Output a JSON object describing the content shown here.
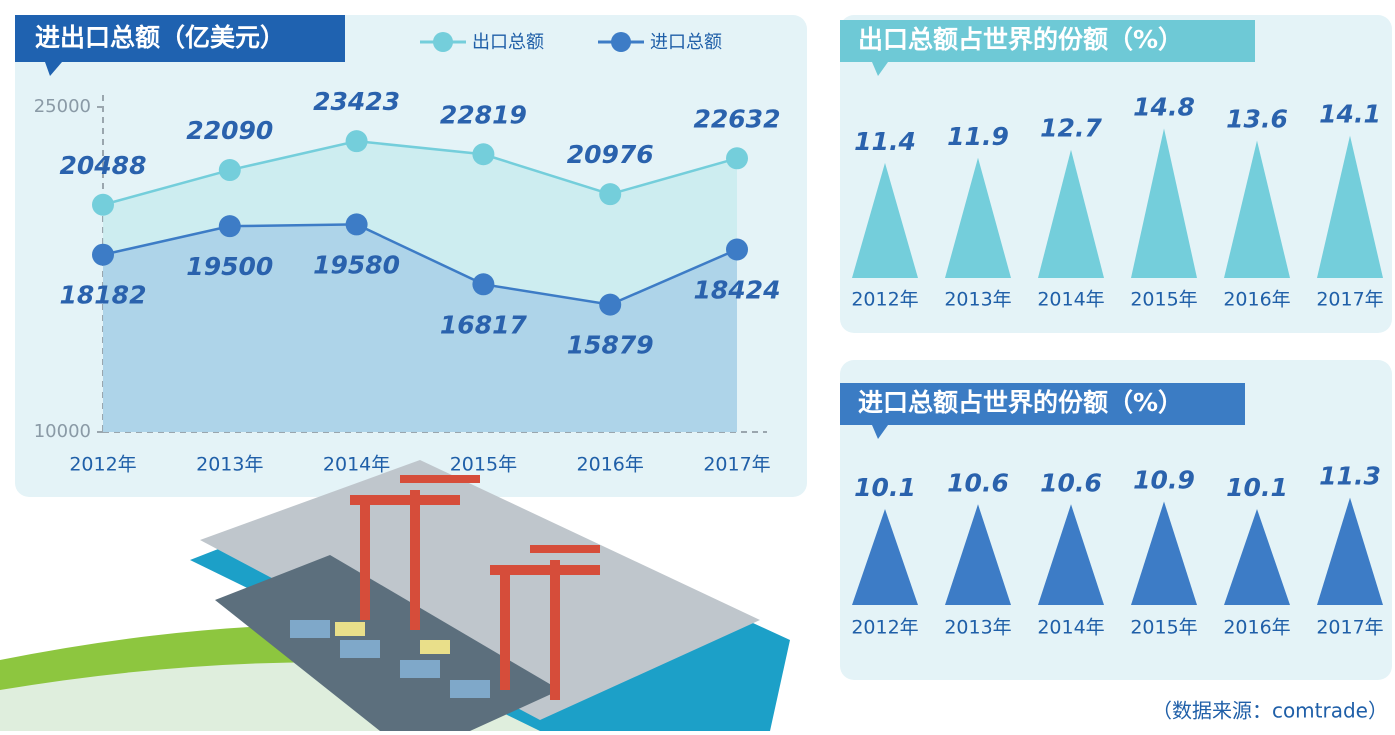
{
  "chart_data": [
    {
      "type": "line",
      "title": "进出口总额（亿美元）",
      "categories": [
        "2012年",
        "2013年",
        "2014年",
        "2015年",
        "2016年",
        "2017年"
      ],
      "series": [
        {
          "name": "出口总额",
          "color": "#74cedb",
          "values": [
            20488,
            22090,
            23423,
            22819,
            20976,
            22632
          ]
        },
        {
          "name": "进口总额",
          "color": "#3d7cc6",
          "values": [
            18182,
            19500,
            19580,
            16817,
            15879,
            18424
          ]
        }
      ],
      "ylim": [
        10000,
        25000
      ],
      "yticks": [
        10000,
        25000
      ]
    },
    {
      "type": "bar",
      "title": "出口总额占世界的份额（%）",
      "categories": [
        "2012年",
        "2013年",
        "2014年",
        "2015年",
        "2016年",
        "2017年"
      ],
      "values": [
        11.4,
        11.9,
        12.7,
        14.8,
        13.6,
        14.1
      ],
      "color": "#74cedb"
    },
    {
      "type": "bar",
      "title": "进口总额占世界的份额（%）",
      "categories": [
        "2012年",
        "2013年",
        "2014年",
        "2015年",
        "2016年",
        "2017年"
      ],
      "values": [
        10.1,
        10.6,
        10.6,
        10.9,
        10.1,
        11.3
      ],
      "color": "#3d7cc6"
    }
  ],
  "source": "（数据来源：comtrade）"
}
